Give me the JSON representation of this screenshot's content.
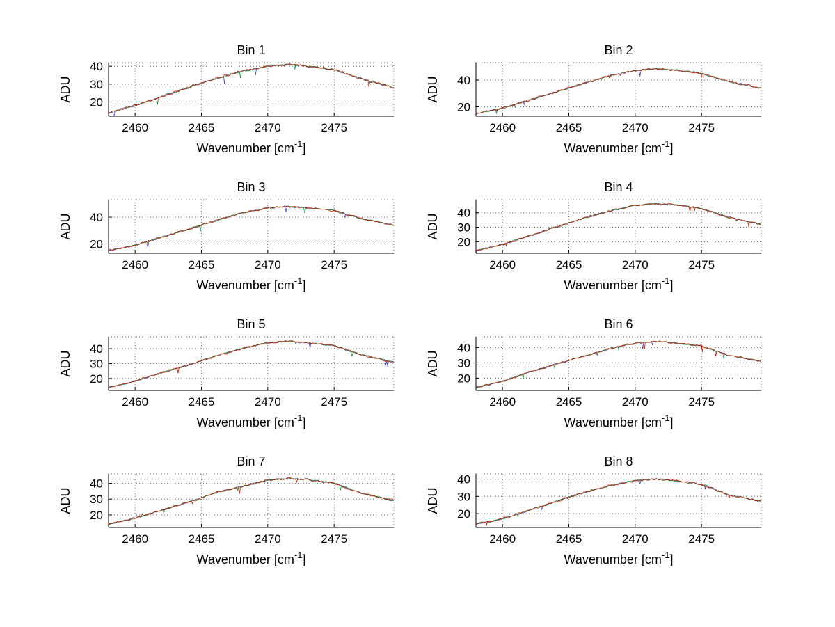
{
  "figure": {
    "background": "#ffffff"
  },
  "axis": {
    "ylabel": "ADU",
    "xlabel_base": "Wavenumber [cm",
    "xlabel_sup": "-1",
    "xlabel_close": "]"
  },
  "style": {
    "grid_color": "#666666",
    "axis_color": "#000000",
    "series": [
      {
        "name": "trace-blue",
        "color": "#4444bb"
      },
      {
        "name": "trace-green",
        "color": "#118833"
      },
      {
        "name": "trace-red",
        "color": "#cc2200"
      }
    ]
  },
  "chart_data": [
    {
      "type": "line",
      "title": "Bin 1",
      "xlabel": "Wavenumber [cm^-1]",
      "ylabel": "ADU",
      "xlim": [
        2458,
        2479.5
      ],
      "ylim": [
        12,
        42
      ],
      "x_ticks": [
        2460,
        2465,
        2470,
        2475
      ],
      "y_ticks": [
        20,
        30,
        40
      ],
      "envelope": {
        "x": [
          2458,
          2460,
          2462,
          2464,
          2466,
          2468,
          2470,
          2471.5,
          2473,
          2475,
          2477,
          2479.5
        ],
        "y": [
          14,
          18,
          23,
          28,
          33,
          37,
          40,
          41,
          40,
          38,
          33,
          28
        ]
      },
      "noise_amplitude": 0.9,
      "seed": 11
    },
    {
      "type": "line",
      "title": "Bin 2",
      "xlabel": "Wavenumber [cm^-1]",
      "ylabel": "ADU",
      "xlim": [
        2458,
        2479.5
      ],
      "ylim": [
        13,
        53
      ],
      "x_ticks": [
        2460,
        2465,
        2470,
        2475
      ],
      "y_ticks": [
        20,
        40
      ],
      "envelope": {
        "x": [
          2458,
          2460,
          2462,
          2464,
          2466,
          2468,
          2470,
          2471.5,
          2473,
          2475,
          2477,
          2479.5
        ],
        "y": [
          15,
          19,
          25,
          31,
          37,
          43,
          47,
          48.5,
          47.5,
          45,
          39,
          34
        ]
      },
      "noise_amplitude": 1.0,
      "seed": 22
    },
    {
      "type": "line",
      "title": "Bin 3",
      "xlabel": "Wavenumber [cm^-1]",
      "ylabel": "ADU",
      "xlim": [
        2458,
        2479.5
      ],
      "ylim": [
        13,
        53
      ],
      "x_ticks": [
        2460,
        2465,
        2470,
        2475
      ],
      "y_ticks": [
        20,
        40
      ],
      "envelope": {
        "x": [
          2458,
          2460,
          2462,
          2464,
          2466,
          2468,
          2470,
          2471.5,
          2473,
          2475,
          2477,
          2479.5
        ],
        "y": [
          15,
          19,
          25,
          31,
          37,
          43,
          47,
          48,
          47,
          45,
          39,
          34
        ]
      },
      "noise_amplitude": 1.0,
      "seed": 33
    },
    {
      "type": "line",
      "title": "Bin 4",
      "xlabel": "Wavenumber [cm^-1]",
      "ylabel": "ADU",
      "xlim": [
        2458,
        2479.5
      ],
      "ylim": [
        12,
        49
      ],
      "x_ticks": [
        2460,
        2465,
        2470,
        2475
      ],
      "y_ticks": [
        20,
        30,
        40
      ],
      "envelope": {
        "x": [
          2458,
          2460,
          2462,
          2464,
          2466,
          2468,
          2470,
          2471.5,
          2473,
          2475,
          2477,
          2479.5
        ],
        "y": [
          14,
          18,
          24,
          30,
          36,
          41,
          45,
          46,
          45.5,
          43,
          37,
          32
        ]
      },
      "noise_amplitude": 1.0,
      "seed": 44
    },
    {
      "type": "line",
      "title": "Bin 5",
      "xlabel": "Wavenumber [cm^-1]",
      "ylabel": "ADU",
      "xlim": [
        2458,
        2479.5
      ],
      "ylim": [
        12,
        48
      ],
      "x_ticks": [
        2460,
        2465,
        2470,
        2475
      ],
      "y_ticks": [
        20,
        30,
        40
      ],
      "envelope": {
        "x": [
          2458,
          2460,
          2462,
          2464,
          2466,
          2468,
          2470,
          2471.5,
          2473,
          2475,
          2477,
          2479.5
        ],
        "y": [
          14,
          18,
          24,
          29,
          35,
          40,
          44,
          45,
          44,
          42,
          36,
          31
        ]
      },
      "noise_amplitude": 0.9,
      "seed": 55
    },
    {
      "type": "line",
      "title": "Bin 6",
      "xlabel": "Wavenumber [cm^-1]",
      "ylabel": "ADU",
      "xlim": [
        2458,
        2479.5
      ],
      "ylim": [
        12,
        47
      ],
      "x_ticks": [
        2460,
        2465,
        2470,
        2475
      ],
      "y_ticks": [
        20,
        30,
        40
      ],
      "envelope": {
        "x": [
          2458,
          2460,
          2462,
          2464,
          2466,
          2468,
          2470,
          2471.5,
          2473,
          2475,
          2477,
          2479.5
        ],
        "y": [
          14,
          18,
          24,
          29,
          34,
          39,
          43,
          44,
          43,
          41,
          35,
          31
        ]
      },
      "noise_amplitude": 0.9,
      "seed": 66
    },
    {
      "type": "line",
      "title": "Bin 7",
      "xlabel": "Wavenumber [cm^-1]",
      "ylabel": "ADU",
      "xlim": [
        2458,
        2479.5
      ],
      "ylim": [
        12,
        46
      ],
      "x_ticks": [
        2460,
        2465,
        2470,
        2475
      ],
      "y_ticks": [
        20,
        30,
        40
      ],
      "envelope": {
        "x": [
          2458,
          2460,
          2462,
          2464,
          2466,
          2468,
          2470,
          2471.5,
          2473,
          2475,
          2477,
          2479.5
        ],
        "y": [
          14,
          18,
          23,
          28,
          34,
          38,
          42,
          43,
          42.5,
          40,
          34,
          29
        ]
      },
      "noise_amplitude": 0.9,
      "seed": 77
    },
    {
      "type": "line",
      "title": "Bin 8",
      "xlabel": "Wavenumber [cm^-1]",
      "ylabel": "ADU",
      "xlim": [
        2458,
        2479.5
      ],
      "ylim": [
        12,
        43
      ],
      "x_ticks": [
        2460,
        2465,
        2470,
        2475
      ],
      "y_ticks": [
        20,
        30,
        40
      ],
      "envelope": {
        "x": [
          2458,
          2460,
          2462,
          2464,
          2466,
          2468,
          2470,
          2471.5,
          2473,
          2475,
          2477,
          2479.5
        ],
        "y": [
          14,
          17,
          22,
          27,
          32,
          36,
          39,
          40,
          39,
          37,
          31,
          27
        ]
      },
      "noise_amplitude": 0.9,
      "seed": 88
    }
  ]
}
